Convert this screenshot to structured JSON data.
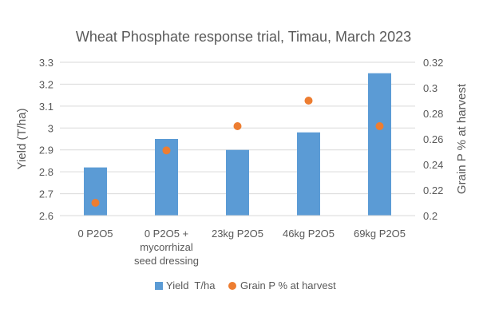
{
  "chart_data": {
    "type": "bar",
    "title": "Wheat Phosphate response trial, Timau, March 2023",
    "categories": [
      [
        "0 P2O5"
      ],
      [
        "0 P2O5 +",
        "mycorrhizal",
        "seed dressing"
      ],
      [
        "23kg P2O5"
      ],
      [
        "46kg P2O5"
      ],
      [
        "69kg P2O5"
      ]
    ],
    "series": [
      {
        "name": "Yield  T/ha",
        "type": "bar",
        "axis": "left",
        "color": "#5b9bd5",
        "values": [
          2.82,
          2.95,
          2.9,
          2.98,
          3.25
        ]
      },
      {
        "name": "Grain P % at harvest",
        "type": "scatter",
        "axis": "right",
        "color": "#ed7d31",
        "values": [
          0.21,
          0.251,
          0.27,
          0.29,
          0.27
        ]
      }
    ],
    "ylabel": "Yield (T/ha)",
    "y2label": "Grain P % at harvest",
    "ylim": [
      2.6,
      3.3
    ],
    "y2lim": [
      0.2,
      0.32
    ],
    "yticks": [
      "2.6",
      "2.7",
      "2.8",
      "2.9",
      "3",
      "3.1",
      "3.2",
      "3.3"
    ],
    "y2ticks": [
      "0.2",
      "0.22",
      "0.24",
      "0.26",
      "0.28",
      "0.3",
      "0.32"
    ],
    "grid": true,
    "legend": "bottom"
  }
}
